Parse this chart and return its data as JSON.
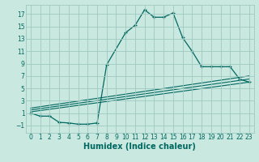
{
  "xlabel": "Humidex (Indice chaleur)",
  "background_color": "#c8e8e0",
  "grid_color": "#a0c8c0",
  "line_color": "#006860",
  "xlim": [
    -0.5,
    23.5
  ],
  "ylim": [
    -2.2,
    18.5
  ],
  "xticks": [
    0,
    1,
    2,
    3,
    4,
    5,
    6,
    7,
    8,
    9,
    10,
    11,
    12,
    13,
    14,
    15,
    16,
    17,
    18,
    19,
    20,
    21,
    22,
    23
  ],
  "yticks": [
    -1,
    1,
    3,
    5,
    7,
    9,
    11,
    13,
    15,
    17
  ],
  "series1_x": [
    0,
    1,
    2,
    3,
    4,
    5,
    6,
    7,
    8,
    10,
    11,
    12,
    13,
    14,
    15,
    16,
    17,
    18,
    19,
    20,
    21,
    22,
    23
  ],
  "series1_y": [
    1,
    0.5,
    0.5,
    -0.5,
    -0.6,
    -0.8,
    -0.8,
    -0.6,
    8.8,
    14.0,
    15.2,
    17.7,
    16.5,
    16.5,
    17.2,
    13.2,
    11.0,
    8.5,
    8.5,
    8.5,
    8.5,
    6.5,
    6.0
  ],
  "series2_x": [
    0,
    23
  ],
  "series2_y": [
    1.2,
    6.0
  ],
  "series3_x": [
    0,
    23
  ],
  "series3_y": [
    1.5,
    6.5
  ],
  "series4_x": [
    0,
    23
  ],
  "series4_y": [
    1.8,
    7.0
  ],
  "xlabel_fontsize": 7,
  "tick_fontsize": 5.5,
  "figwidth": 3.2,
  "figheight": 2.0,
  "dpi": 100
}
